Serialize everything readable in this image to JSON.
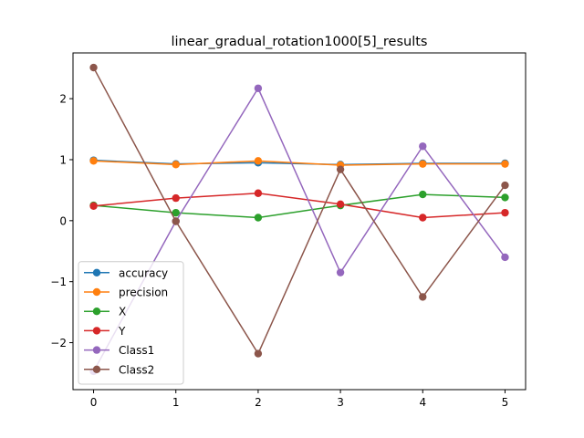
{
  "chart_data": {
    "type": "line",
    "title": "linear_gradual_rotation1000[5]_results",
    "xlabel": "",
    "ylabel": "",
    "x": [
      0,
      1,
      2,
      3,
      4,
      5
    ],
    "xlim": [
      -0.25,
      5.25
    ],
    "ylim": [
      -2.77,
      2.75
    ],
    "x_ticks": [
      0,
      1,
      2,
      3,
      4,
      5
    ],
    "y_ticks": [
      -2,
      -1,
      0,
      1,
      2
    ],
    "y_tick_labels": [
      "−2",
      "−1",
      "0",
      "1",
      "2"
    ],
    "grid": false,
    "legend_position": "lower-left",
    "series": [
      {
        "name": "accuracy",
        "color": "#1f77b4",
        "values": [
          0.99,
          0.93,
          0.95,
          0.92,
          0.94,
          0.94
        ]
      },
      {
        "name": "precision",
        "color": "#ff7f0e",
        "values": [
          0.98,
          0.92,
          0.98,
          0.91,
          0.93,
          0.93
        ]
      },
      {
        "name": "X",
        "color": "#2ca02c",
        "values": [
          0.25,
          0.13,
          0.05,
          0.25,
          0.43,
          0.38
        ]
      },
      {
        "name": "Y",
        "color": "#d62728",
        "values": [
          0.24,
          0.37,
          0.45,
          0.27,
          0.05,
          0.13
        ]
      },
      {
        "name": "Class1",
        "color": "#9467bd",
        "values": [
          -2.47,
          -0.01,
          2.17,
          -0.85,
          1.22,
          -0.6
        ]
      },
      {
        "name": "Class2",
        "color": "#8c564b",
        "values": [
          2.51,
          -0.01,
          -2.18,
          0.84,
          -1.25,
          0.58
        ]
      }
    ]
  }
}
